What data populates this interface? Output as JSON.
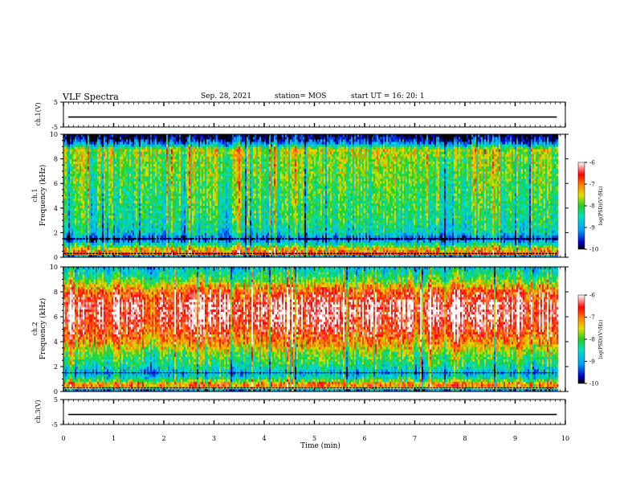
{
  "header": {
    "title": "VLF Spectra",
    "date": "Sep. 28, 2021",
    "station": "station= MOS",
    "start": "start  UT  =   16: 20: 1"
  },
  "chart_data": [
    {
      "type": "line",
      "name": "ch1-waveform",
      "ylabel": "ch.1(V)",
      "ylim": [
        -5,
        5
      ],
      "yticks": [
        "5",
        "-5"
      ],
      "x": [
        0,
        10
      ],
      "values": [
        -1,
        -1
      ],
      "xlim": [
        0,
        10
      ]
    },
    {
      "type": "heatmap",
      "name": "ch1-spectrogram",
      "ylabel": "ch.1\nFrequency (kHz)",
      "ylim": [
        0,
        10
      ],
      "yticks": [
        "0",
        "2",
        "4",
        "6",
        "8",
        "10"
      ],
      "xlim": [
        0,
        10
      ],
      "data_end_min": 9.83,
      "colorbar": {
        "label": "log(PSD)(V²/Hz)",
        "range": [
          -10,
          -6
        ],
        "ticks": [
          "-10",
          "-9",
          "-8",
          "-7",
          "-6"
        ]
      },
      "profile_khz": [
        0.0,
        0.3,
        0.6,
        1.0,
        1.5,
        2.0,
        3.0,
        4.0,
        5.0,
        6.0,
        7.0,
        8.0,
        8.8,
        9.2,
        9.6,
        10.0
      ],
      "profile_logpsd": [
        -10.0,
        -6.8,
        -7.2,
        -8.2,
        -9.5,
        -8.6,
        -8.3,
        -8.2,
        -8.1,
        -8.0,
        -7.9,
        -7.8,
        -7.6,
        -9.0,
        -9.7,
        -10.0
      ]
    },
    {
      "type": "heatmap",
      "name": "ch2-spectrogram",
      "ylabel": "ch.2\nFrequency (kHz)",
      "ylim": [
        0,
        10
      ],
      "yticks": [
        "0",
        "2",
        "4",
        "6",
        "8",
        "10"
      ],
      "xlim": [
        0,
        10
      ],
      "data_end_min": 9.83,
      "colorbar": {
        "label": "log(PSD)(V²/Hz)",
        "range": [
          -10,
          -6
        ],
        "ticks": [
          "-10",
          "-9",
          "-8",
          "-7",
          "-6"
        ]
      },
      "profile_khz": [
        0.0,
        0.3,
        0.6,
        1.0,
        1.5,
        2.0,
        3.0,
        4.0,
        5.0,
        6.0,
        7.0,
        8.0,
        8.5,
        9.0,
        9.5,
        10.0
      ],
      "profile_logpsd": [
        -10.0,
        -7.5,
        -6.9,
        -8.3,
        -9.0,
        -8.4,
        -7.9,
        -7.1,
        -6.6,
        -6.3,
        -6.3,
        -6.8,
        -7.4,
        -8.0,
        -8.4,
        -8.8
      ]
    },
    {
      "type": "line",
      "name": "ch3-waveform",
      "ylabel": "ch.3(V)",
      "ylim": [
        -5,
        5
      ],
      "yticks": [
        "5",
        "-5"
      ],
      "x": [
        0,
        10
      ],
      "values": [
        -1,
        -1
      ],
      "xlim": [
        0,
        10
      ]
    }
  ],
  "xaxis": {
    "label": "Time (min)",
    "ticks": [
      "0",
      "1",
      "2",
      "3",
      "4",
      "5",
      "6",
      "7",
      "8",
      "9",
      "10"
    ]
  }
}
